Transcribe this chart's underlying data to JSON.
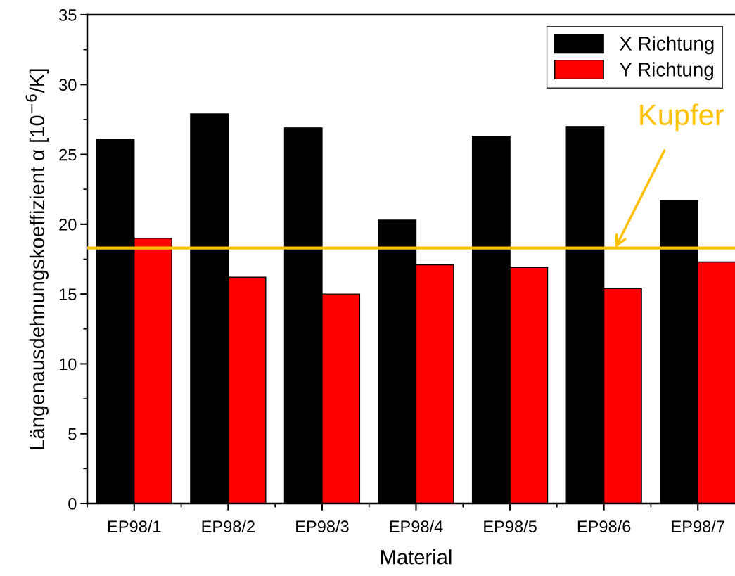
{
  "chart_data": {
    "type": "bar",
    "xlabel": "Material",
    "ylabel": "Längenausdehnungskoeffizient α [10$^{−6}$/K]",
    "categories": [
      "EP98/1",
      "EP98/2",
      "EP98/3",
      "EP98/4",
      "EP98/5",
      "EP98/6",
      "EP98/7"
    ],
    "series": [
      {
        "name": "X Richtung",
        "color": "#000000",
        "values": [
          26.1,
          27.9,
          26.9,
          20.3,
          26.3,
          27.0,
          21.7
        ]
      },
      {
        "name": "Y Richtung",
        "color": "#ff0000",
        "values": [
          19.0,
          16.2,
          15.0,
          17.1,
          16.9,
          15.4,
          17.3
        ]
      }
    ],
    "ylim": [
      0,
      35
    ],
    "yticks": [
      0,
      5,
      10,
      15,
      20,
      25,
      30,
      35
    ],
    "ref_lines": [
      {
        "axis": "y",
        "value": 18.3,
        "label": "Kupfer",
        "color": "#ffc000"
      }
    ],
    "legend": "top right",
    "grid": false
  }
}
